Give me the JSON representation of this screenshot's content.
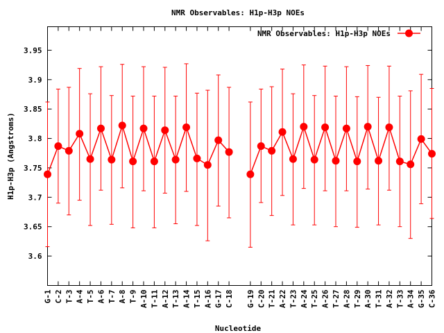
{
  "colors": {
    "series": "#ff0000",
    "axis": "#000000",
    "background": "#ffffff"
  },
  "chart_data": {
    "type": "line",
    "title": "NMR Observables: H1p-H3p NOEs",
    "xlabel": "Nucleotide",
    "ylabel": "H1p-H3p (Angstroms)",
    "ylim": [
      3.55,
      3.99
    ],
    "yticks": [
      3.6,
      3.65,
      3.7,
      3.75,
      3.8,
      3.85,
      3.9,
      3.95
    ],
    "ytick_labels": [
      "3.6",
      "3.65",
      "3.7",
      "3.75",
      "3.8",
      "3.85",
      "3.9",
      "3.95"
    ],
    "grid": false,
    "legend": "top-right",
    "categories": [
      "G-1",
      "C-2",
      "T-3",
      "A-4",
      "T-5",
      "A-6",
      "T-7",
      "A-8",
      "T-9",
      "A-10",
      "T-11",
      "A-12",
      "T-13",
      "A-14",
      "T-15",
      "A-16",
      "G-17",
      "C-18",
      "G-19",
      "C-20",
      "T-21",
      "A-22",
      "T-23",
      "A-24",
      "T-25",
      "A-26",
      "T-27",
      "A-28",
      "T-29",
      "A-30",
      "T-31",
      "A-32",
      "T-33",
      "A-34",
      "G-35",
      "C-36"
    ],
    "series": [
      {
        "name": "NMR Observables: H1p-H3p NOEs",
        "values": [
          3.739,
          3.787,
          3.779,
          3.808,
          3.765,
          3.817,
          3.764,
          3.822,
          3.761,
          3.817,
          3.761,
          3.814,
          3.764,
          3.819,
          3.766,
          3.755,
          3.797,
          3.777,
          3.739,
          3.787,
          3.779,
          3.811,
          3.765,
          3.82,
          3.764,
          3.819,
          3.762,
          3.817,
          3.761,
          3.82,
          3.762,
          3.819,
          3.761,
          3.756,
          3.799,
          3.774
        ],
        "err_low": [
          3.616,
          3.69,
          3.67,
          3.695,
          3.652,
          3.712,
          3.654,
          3.716,
          3.648,
          3.711,
          3.648,
          3.707,
          3.655,
          3.71,
          3.652,
          3.626,
          3.685,
          3.665,
          3.615,
          3.691,
          3.669,
          3.703,
          3.653,
          3.715,
          3.653,
          3.711,
          3.65,
          3.711,
          3.649,
          3.714,
          3.653,
          3.712,
          3.65,
          3.63,
          3.689,
          3.664
        ],
        "err_high": [
          3.862,
          3.884,
          3.887,
          3.919,
          3.876,
          3.922,
          3.873,
          3.926,
          3.872,
          3.922,
          3.872,
          3.921,
          3.872,
          3.927,
          3.877,
          3.882,
          3.908,
          3.887,
          3.862,
          3.884,
          3.888,
          3.918,
          3.876,
          3.925,
          3.873,
          3.923,
          3.872,
          3.922,
          3.871,
          3.924,
          3.87,
          3.923,
          3.872,
          3.881,
          3.909,
          3.885
        ]
      }
    ]
  }
}
